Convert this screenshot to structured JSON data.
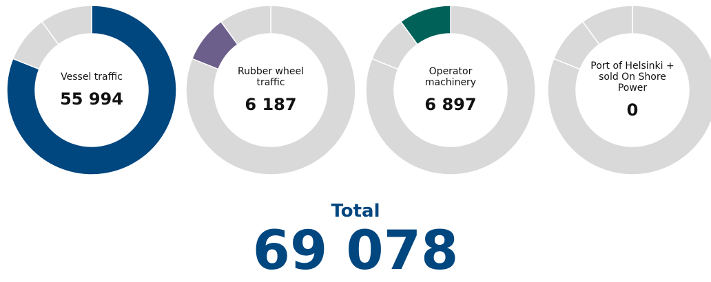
{
  "chart_data": {
    "type": "donut",
    "categories": [
      "Vessel traffic",
      "Rubber wheel traffic",
      "Operator machinery",
      "Port of Helsinki + sold On Shore Power"
    ],
    "values": [
      55994,
      6187,
      6897,
      0
    ],
    "value_labels": [
      "55 994",
      "6 187",
      "6 897",
      "0"
    ],
    "colors": [
      "#00467f",
      "#6d5f8c",
      "#006159",
      "#00467f"
    ],
    "other_color": "#d9d9d9",
    "total": {
      "label": "Total",
      "value": 69078,
      "value_label": "69 078"
    }
  }
}
